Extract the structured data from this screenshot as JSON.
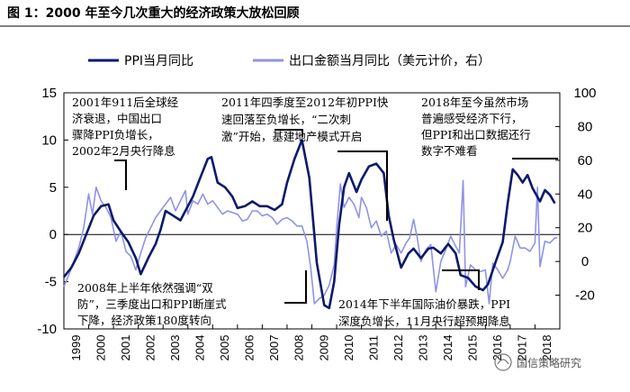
{
  "chart_data": {
    "type": "line",
    "title": "图 1：2000 年至今几次重大的经济政策大放松回顾",
    "legend_position": "top",
    "series": [
      {
        "name": "PPI当月同比",
        "axis": "left",
        "color": "#0b1a6b",
        "points": [
          [
            1999.0,
            -4.5
          ],
          [
            1999.3,
            -3.5
          ],
          [
            1999.6,
            -2.0
          ],
          [
            1999.9,
            0.0
          ],
          [
            2000.2,
            2.0
          ],
          [
            2000.5,
            3.0
          ],
          [
            2000.8,
            3.2
          ],
          [
            2001.0,
            1.5
          ],
          [
            2001.3,
            0.3
          ],
          [
            2001.6,
            -0.8
          ],
          [
            2001.9,
            -2.5
          ],
          [
            2002.1,
            -4.2
          ],
          [
            2002.4,
            -2.5
          ],
          [
            2002.7,
            -1.0
          ],
          [
            2002.9,
            0.5
          ],
          [
            2003.1,
            2.5
          ],
          [
            2003.4,
            2.0
          ],
          [
            2003.7,
            1.5
          ],
          [
            2003.9,
            2.5
          ],
          [
            2004.2,
            4.0
          ],
          [
            2004.5,
            6.0
          ],
          [
            2004.8,
            8.0
          ],
          [
            2004.95,
            8.2
          ],
          [
            2005.2,
            5.5
          ],
          [
            2005.5,
            5.0
          ],
          [
            2005.8,
            4.0
          ],
          [
            2006.0,
            2.8
          ],
          [
            2006.3,
            3.0
          ],
          [
            2006.6,
            3.5
          ],
          [
            2006.9,
            3.0
          ],
          [
            2007.2,
            3.0
          ],
          [
            2007.5,
            2.6
          ],
          [
            2007.8,
            3.2
          ],
          [
            2008.0,
            5.5
          ],
          [
            2008.3,
            8.0
          ],
          [
            2008.6,
            10.0
          ],
          [
            2008.9,
            6.0
          ],
          [
            2009.0,
            3.0
          ],
          [
            2009.2,
            -3.0
          ],
          [
            2009.5,
            -7.5
          ],
          [
            2009.7,
            -7.8
          ],
          [
            2009.9,
            -5.0
          ],
          [
            2010.1,
            1.0
          ],
          [
            2010.3,
            5.0
          ],
          [
            2010.5,
            6.5
          ],
          [
            2010.8,
            4.5
          ],
          [
            2011.0,
            5.8
          ],
          [
            2011.3,
            7.2
          ],
          [
            2011.6,
            7.5
          ],
          [
            2011.9,
            6.5
          ],
          [
            2012.1,
            2.0
          ],
          [
            2012.3,
            -0.5
          ],
          [
            2012.6,
            -3.5
          ],
          [
            2012.9,
            -2.0
          ],
          [
            2013.1,
            -1.5
          ],
          [
            2013.4,
            -2.5
          ],
          [
            2013.7,
            -1.5
          ],
          [
            2013.9,
            -1.4
          ],
          [
            2014.2,
            -2.0
          ],
          [
            2014.5,
            -1.0
          ],
          [
            2014.8,
            -2.0
          ],
          [
            2015.0,
            -4.3
          ],
          [
            2015.3,
            -4.6
          ],
          [
            2015.6,
            -5.5
          ],
          [
            2015.9,
            -5.9
          ],
          [
            2016.1,
            -5.3
          ],
          [
            2016.4,
            -3.0
          ],
          [
            2016.7,
            -0.8
          ],
          [
            2016.9,
            3.3
          ],
          [
            2017.1,
            6.9
          ],
          [
            2017.3,
            6.3
          ],
          [
            2017.5,
            5.5
          ],
          [
            2017.7,
            6.3
          ],
          [
            2017.9,
            4.9
          ],
          [
            2018.2,
            3.5
          ],
          [
            2018.4,
            4.7
          ],
          [
            2018.6,
            4.2
          ],
          [
            2018.8,
            3.3
          ]
        ]
      },
      {
        "name": "出口金额当月同比（美元计价，右）",
        "axis": "right",
        "color": "#8f93e6",
        "points": [
          [
            1999.0,
            -15
          ],
          [
            1999.2,
            -8
          ],
          [
            1999.4,
            0
          ],
          [
            1999.6,
            8
          ],
          [
            1999.8,
            20
          ],
          [
            1999.9,
            30
          ],
          [
            2000.0,
            40
          ],
          [
            2000.15,
            28
          ],
          [
            2000.3,
            44
          ],
          [
            2000.5,
            36
          ],
          [
            2000.7,
            32
          ],
          [
            2000.9,
            26
          ],
          [
            2001.1,
            12
          ],
          [
            2001.3,
            18
          ],
          [
            2001.5,
            6
          ],
          [
            2001.7,
            3
          ],
          [
            2001.9,
            -5
          ],
          [
            2002.1,
            5
          ],
          [
            2002.3,
            14
          ],
          [
            2002.5,
            20
          ],
          [
            2002.7,
            26
          ],
          [
            2002.9,
            30
          ],
          [
            2003.1,
            34
          ],
          [
            2003.3,
            38
          ],
          [
            2003.5,
            30
          ],
          [
            2003.7,
            36
          ],
          [
            2003.9,
            42
          ],
          [
            2004.0,
            28
          ],
          [
            2004.2,
            36
          ],
          [
            2004.4,
            34
          ],
          [
            2004.6,
            40
          ],
          [
            2004.8,
            34
          ],
          [
            2005.0,
            36
          ],
          [
            2005.2,
            32
          ],
          [
            2005.4,
            28
          ],
          [
            2005.6,
            30
          ],
          [
            2005.8,
            29
          ],
          [
            2006.0,
            28
          ],
          [
            2006.2,
            24
          ],
          [
            2006.4,
            25
          ],
          [
            2006.6,
            30
          ],
          [
            2006.8,
            30
          ],
          [
            2007.0,
            27
          ],
          [
            2007.2,
            28
          ],
          [
            2007.4,
            26
          ],
          [
            2007.6,
            22
          ],
          [
            2007.8,
            25
          ],
          [
            2008.0,
            26
          ],
          [
            2008.2,
            24
          ],
          [
            2008.4,
            21
          ],
          [
            2008.6,
            21
          ],
          [
            2008.8,
            12
          ],
          [
            2008.95,
            -3
          ],
          [
            2009.1,
            -25
          ],
          [
            2009.3,
            -22
          ],
          [
            2009.5,
            -20
          ],
          [
            2009.7,
            -14
          ],
          [
            2009.9,
            -2
          ],
          [
            2010.0,
            20
          ],
          [
            2010.15,
            46
          ],
          [
            2010.3,
            32
          ],
          [
            2010.5,
            38
          ],
          [
            2010.7,
            34
          ],
          [
            2010.9,
            26
          ],
          [
            2011.0,
            38
          ],
          [
            2011.2,
            32
          ],
          [
            2011.4,
            20
          ],
          [
            2011.6,
            24
          ],
          [
            2011.8,
            15
          ],
          [
            2012.0,
            18
          ],
          [
            2012.2,
            5
          ],
          [
            2012.4,
            10
          ],
          [
            2012.6,
            5
          ],
          [
            2012.8,
            11
          ],
          [
            2012.95,
            14
          ],
          [
            2013.1,
            25
          ],
          [
            2013.25,
            14
          ],
          [
            2013.4,
            0
          ],
          [
            2013.6,
            7
          ],
          [
            2013.8,
            10
          ],
          [
            2014.0,
            -18
          ],
          [
            2014.2,
            0
          ],
          [
            2014.4,
            7
          ],
          [
            2014.6,
            15
          ],
          [
            2014.8,
            9
          ],
          [
            2014.95,
            5
          ],
          [
            2015.1,
            48
          ],
          [
            2015.2,
            -15
          ],
          [
            2015.4,
            -2
          ],
          [
            2015.6,
            -5
          ],
          [
            2015.8,
            -6
          ],
          [
            2016.0,
            -5
          ],
          [
            2016.15,
            -25
          ],
          [
            2016.3,
            -1
          ],
          [
            2016.5,
            -5
          ],
          [
            2016.7,
            -10
          ],
          [
            2016.9,
            -5
          ],
          [
            2017.0,
            0
          ],
          [
            2017.2,
            15
          ],
          [
            2017.4,
            8
          ],
          [
            2017.6,
            8
          ],
          [
            2017.8,
            6
          ],
          [
            2018.0,
            11
          ],
          [
            2018.1,
            44
          ],
          [
            2018.2,
            -3
          ],
          [
            2018.4,
            12
          ],
          [
            2018.6,
            11
          ],
          [
            2018.8,
            14
          ],
          [
            2018.9,
            14
          ]
        ]
      }
    ],
    "y_left": {
      "range": [
        -10,
        15
      ],
      "ticks": [
        -10,
        -5,
        0,
        5,
        10,
        15
      ]
    },
    "y_right": {
      "range": [
        -40,
        100
      ],
      "ticks": [
        -20,
        0,
        20,
        40,
        60,
        80,
        100
      ]
    },
    "x": {
      "range": [
        1999,
        2019
      ],
      "ticks": [
        "1999",
        "2000",
        "2001",
        "2002",
        "2003",
        "2004",
        "2005",
        "2006",
        "2007",
        "2008",
        "2009",
        "2010",
        "2011",
        "2012",
        "2013",
        "2014",
        "2015",
        "2016",
        "2017",
        "2018"
      ]
    },
    "annotations": [
      {
        "id": "a2001",
        "lines": [
          "2001年911后全球经",
          "济衰退，中国出口",
          "骤降PPI负增长，",
          "2002年2月央行降息"
        ]
      },
      {
        "id": "a2011",
        "lines": [
          "2011年四季度至2012年初PPI快",
          "速回落至负增长，“二次刺",
          "激”开始，基建地产模式开启"
        ]
      },
      {
        "id": "a2018",
        "lines": [
          "2018年至今虽然市场",
          "普遍感受经济下行，",
          "但PPI和出口数据还行",
          "数字不难看"
        ]
      },
      {
        "id": "a2008",
        "lines": [
          "2008年上半年依然强调“双",
          "防”，三季度出口和PPI断崖式",
          "下降，经济政策180度转向"
        ]
      },
      {
        "id": "a2014",
        "lines": [
          "2014年下半年国际油价暴跌，PPI",
          "深度负增长，11月央行超预期降息"
        ]
      }
    ],
    "watermark": "国信策略研究"
  }
}
